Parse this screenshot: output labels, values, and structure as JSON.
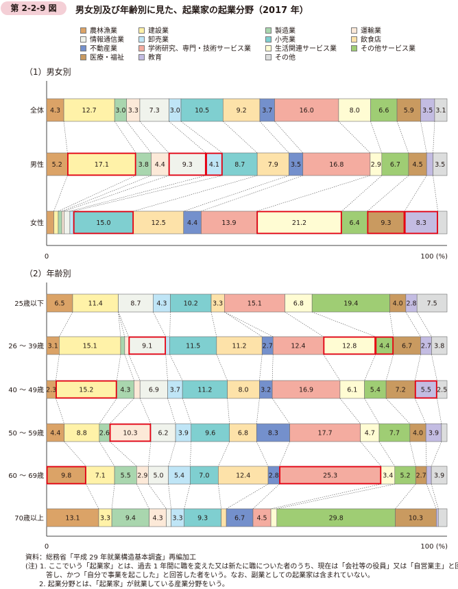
{
  "header": {
    "figure_no": "第 2-2-9 図",
    "title": "男女別及び年齢別に見た、起業家の起業分野（2017 年）"
  },
  "legend": [
    {
      "label": "農林漁業",
      "color": "#dba367"
    },
    {
      "label": "建設業",
      "color": "#fff2a8"
    },
    {
      "label": "製造業",
      "color": "#a9d6ae"
    },
    {
      "label": "運輸業",
      "color": "#fce9d8"
    },
    {
      "label": "情報通信業",
      "color": "#f0f3ec"
    },
    {
      "label": "卸売業",
      "color": "#bfe5f6"
    },
    {
      "label": "小売業",
      "color": "#7fcfd0"
    },
    {
      "label": "飲食店",
      "color": "#fde2a9"
    },
    {
      "label": "不動産業",
      "color": "#7490cc"
    },
    {
      "label": "学術研究、専門・技術サービス業",
      "color": "#f4aca0"
    },
    {
      "label": "生活関連サービス業",
      "color": "#fffcd3"
    },
    {
      "label": "その他サービス業",
      "color": "#9fcd74"
    },
    {
      "label": "医療・福祉",
      "color": "#c99a60"
    },
    {
      "label": "教育",
      "color": "#c3bce2"
    },
    {
      "label": "その他",
      "color": "#dcdddd"
    }
  ],
  "sections": {
    "gender": "（1）男女別",
    "age": "（2）年齢別"
  },
  "chart_data": [
    {
      "type": "bar",
      "stacked": true,
      "orientation": "horizontal",
      "title": "男女別",
      "xlim": [
        0,
        100
      ],
      "xticks": [
        "0",
        "100 (%)"
      ],
      "categories": [
        "全体",
        "男性",
        "女性"
      ],
      "series": [
        {
          "name": "農林漁業",
          "values": [
            4.3,
            5.2,
            1.8
          ]
        },
        {
          "name": "建設業",
          "values": [
            12.7,
            17.1,
            1.1
          ]
        },
        {
          "name": "製造業",
          "values": [
            3.0,
            3.8,
            0.9
          ]
        },
        {
          "name": "運輸業",
          "values": [
            3.3,
            4.4,
            0.6
          ]
        },
        {
          "name": "情報通信業",
          "values": [
            7.3,
            9.3,
            1.4
          ]
        },
        {
          "name": "卸売業",
          "values": [
            3.0,
            4.1,
            0.9
          ]
        },
        {
          "name": "小売業",
          "values": [
            10.5,
            8.7,
            15.0
          ]
        },
        {
          "name": "飲食店",
          "values": [
            9.2,
            7.9,
            12.5
          ]
        },
        {
          "name": "不動産業",
          "values": [
            3.7,
            3.5,
            4.4
          ]
        },
        {
          "name": "学術研究、専門・技術サービス業",
          "values": [
            16.0,
            16.8,
            13.9
          ]
        },
        {
          "name": "生活関連サービス業",
          "values": [
            8.0,
            2.9,
            21.2
          ]
        },
        {
          "name": "その他サービス業",
          "values": [
            6.6,
            6.7,
            6.4
          ]
        },
        {
          "name": "医療・福祉",
          "values": [
            5.9,
            4.5,
            9.3
          ]
        },
        {
          "name": "教育",
          "values": [
            3.5,
            1.6,
            8.3
          ]
        },
        {
          "name": "その他",
          "values": [
            3.1,
            3.5,
            2.3
          ]
        }
      ],
      "labels": [
        [
          "4.3",
          "12.7",
          "3.0",
          "3.3",
          "7.3",
          "3.0",
          "10.5",
          "9.2",
          "3.7",
          "16.0",
          "8.0",
          "6.6",
          "5.9",
          "3.5",
          "3.1"
        ],
        [
          "5.2",
          "17.1",
          "3.8",
          "4.4",
          "9.3",
          "4.1",
          "8.7",
          "7.9",
          "3.5",
          "16.8",
          "2.9",
          "6.7",
          "4.5",
          "",
          "3.5"
        ],
        [
          "",
          "",
          "",
          "",
          "",
          "",
          "15.0",
          "12.5",
          "4.4",
          "13.9",
          "21.2",
          "6.4",
          "9.3",
          "8.3",
          ""
        ]
      ],
      "highlighted": [
        [],
        [
          "建設業",
          "情報通信業",
          "卸売業"
        ],
        [
          "小売業",
          "生活関連サービス業",
          "医療・福祉",
          "教育"
        ]
      ]
    },
    {
      "type": "bar",
      "stacked": true,
      "orientation": "horizontal",
      "title": "年齢別",
      "xlim": [
        0,
        100
      ],
      "xticks": [
        "0",
        "100 (%)"
      ],
      "categories": [
        "25歳以下",
        "26 ～ 39歳",
        "40 ～ 49歳",
        "50 ～ 59歳",
        "60 ～ 69歳",
        "70歳以上"
      ],
      "series": [
        {
          "name": "農林漁業",
          "values": [
            6.5,
            3.1,
            2.3,
            4.4,
            9.8,
            13.1
          ]
        },
        {
          "name": "建設業",
          "values": [
            11.4,
            15.1,
            15.2,
            8.8,
            7.1,
            3.3
          ]
        },
        {
          "name": "製造業",
          "values": [
            0.0,
            1.0,
            4.3,
            2.6,
            5.5,
            9.4
          ]
        },
        {
          "name": "運輸業",
          "values": [
            0.0,
            1.0,
            1.5,
            10.3,
            2.9,
            4.3
          ]
        },
        {
          "name": "情報通信業",
          "values": [
            8.7,
            9.1,
            6.9,
            6.2,
            5.0,
            1.2
          ]
        },
        {
          "name": "卸売業",
          "values": [
            4.3,
            1.0,
            3.7,
            3.9,
            5.4,
            3.3
          ]
        },
        {
          "name": "小売業",
          "values": [
            10.2,
            11.5,
            11.2,
            9.6,
            7.0,
            9.3
          ]
        },
        {
          "name": "飲食店",
          "values": [
            3.3,
            11.2,
            8.0,
            6.8,
            12.4,
            1.3
          ]
        },
        {
          "name": "不動産業",
          "values": [
            0.0,
            2.7,
            3.2,
            8.3,
            2.8,
            6.7
          ]
        },
        {
          "name": "学術研究、専門・技術サービス業",
          "values": [
            15.1,
            12.4,
            16.9,
            17.7,
            25.3,
            4.5
          ]
        },
        {
          "name": "生活関連サービス業",
          "values": [
            6.8,
            12.8,
            6.1,
            4.7,
            3.4,
            1.5
          ]
        },
        {
          "name": "その他サービス業",
          "values": [
            19.4,
            4.4,
            5.4,
            7.7,
            5.2,
            29.8
          ]
        },
        {
          "name": "医療・福祉",
          "values": [
            4.0,
            6.7,
            7.2,
            4.0,
            2.7,
            10.3
          ]
        },
        {
          "name": "教育",
          "values": [
            2.8,
            2.7,
            5.5,
            3.9,
            1.2,
            0.5
          ]
        },
        {
          "name": "その他",
          "values": [
            7.5,
            3.8,
            2.5,
            1.4,
            3.9,
            2.2
          ]
        }
      ],
      "labels": [
        [
          "6.5",
          "11.4",
          "",
          "",
          "8.7",
          "4.3",
          "10.2",
          "3.3",
          "",
          "15.1",
          "6.8",
          "19.4",
          "4.0",
          "2.8",
          "7.5"
        ],
        [
          "3.1",
          "15.1",
          "",
          "",
          "9.1",
          "",
          "11.5",
          "11.2",
          "2.7",
          "12.4",
          "12.8",
          "4.4",
          "6.7",
          "2.7",
          "3.8"
        ],
        [
          "2.3",
          "15.2",
          "4.3",
          "",
          "6.9",
          "3.7",
          "11.2",
          "8.0",
          "3.2",
          "16.9",
          "6.1",
          "5.4",
          "7.2",
          "5.5",
          "2.5"
        ],
        [
          "4.4",
          "8.8",
          "2.6",
          "10.3",
          "6.2",
          "3.9",
          "9.6",
          "6.8",
          "8.3",
          "17.7",
          "4.7",
          "7.7",
          "4.0",
          "3.9",
          ""
        ],
        [
          "9.8",
          "7.1",
          "5.5",
          "2.9",
          "5.0",
          "5.4",
          "7.0",
          "12.4",
          "2.8",
          "25.3",
          "3.4",
          "5.2",
          "2.7",
          "",
          "3.9"
        ],
        [
          "13.1",
          "3.3",
          "9.4",
          "4.3",
          "",
          "3.3",
          "9.3",
          "",
          "6.7",
          "4.5",
          "",
          "29.8",
          "10.3",
          "",
          ""
        ]
      ],
      "highlighted": [
        [],
        [
          "情報通信業",
          "生活関連サービス業",
          "その他サービス業"
        ],
        [
          "建設業",
          "教育"
        ],
        [
          "運輸業"
        ],
        [
          "農林漁業",
          "学術研究、専門・技術サービス業"
        ],
        []
      ]
    }
  ],
  "notes": [
    "資料：総務省「平成 29 年就業構造基本調査」再編加工",
    "(注) 1. ここでいう「起業家」とは、過去 1 年間に職を変えた又は新たに職についた者のうち、現在は「会社等の役員」又は「自営業主」と回",
    "　　　答し、かつ「自分で事業を起こした」と回答した者をいう。なお、副業としての起業家は含まれていない。",
    "　　2. 起業分野とは、「起業家」が就業している産業分野をいう。"
  ]
}
